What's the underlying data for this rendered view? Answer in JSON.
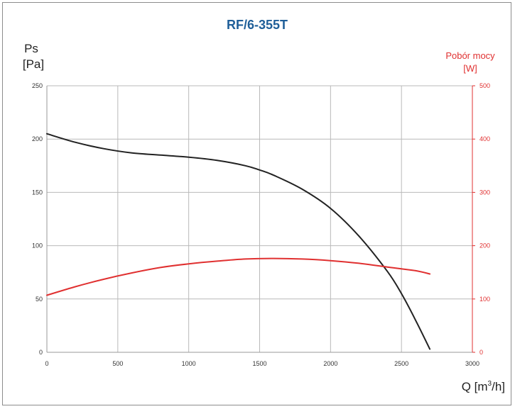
{
  "chart_data": {
    "type": "line",
    "title": "RF/6-355T",
    "ylabel_left": [
      "Ps",
      "[Pa]"
    ],
    "ylabel_right": [
      "Pobór mocy",
      "[W]"
    ],
    "xlabel": "Q [m",
    "xlabel_sup": "3",
    "xlabel_suffix": "/h]",
    "xlim": [
      0,
      3000
    ],
    "ylim_left": [
      0,
      250
    ],
    "ylim_right": [
      0,
      500
    ],
    "x_ticks": [
      0,
      500,
      1000,
      1500,
      2000,
      2500,
      3000
    ],
    "y_ticks_left": [
      0,
      50,
      100,
      150,
      200,
      250
    ],
    "y_ticks_right": [
      0,
      100,
      200,
      300,
      400,
      500
    ],
    "grid": true,
    "colors": {
      "left": "#222222",
      "right": "#e03030",
      "title": "#1f5f99"
    },
    "series": [
      {
        "axis": "left",
        "color": "#222222",
        "x": [
          0,
          200,
          400,
          600,
          800,
          1000,
          1200,
          1400,
          1500,
          1600,
          1800,
          2000,
          2200,
          2400,
          2500,
          2600,
          2700
        ],
        "y": [
          205,
          197,
          191,
          187,
          185,
          183,
          180,
          175,
          171,
          166,
          153,
          135,
          109,
          76,
          55,
          30,
          3
        ]
      },
      {
        "axis": "right",
        "color": "#e03030",
        "x": [
          0,
          200,
          400,
          600,
          800,
          1000,
          1200,
          1400,
          1600,
          1800,
          2000,
          2200,
          2400,
          2600,
          2700
        ],
        "y": [
          107,
          123,
          137,
          149,
          159,
          166,
          171,
          175,
          176,
          175,
          172,
          167,
          160,
          153,
          147
        ]
      }
    ]
  }
}
